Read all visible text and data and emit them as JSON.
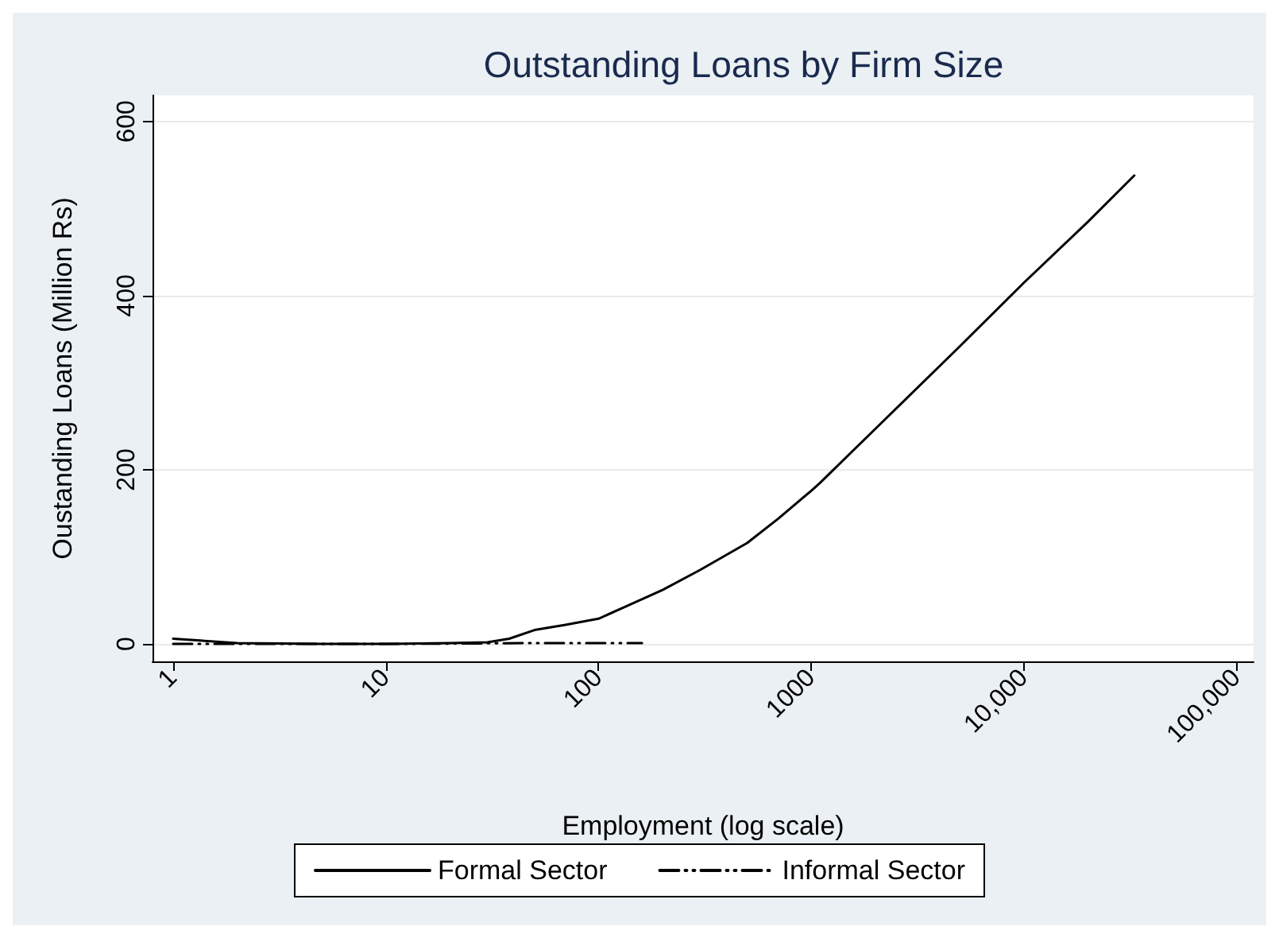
{
  "chart_data": {
    "type": "line",
    "title": "Outstanding Loans by Firm Size",
    "xlabel": "Employment (log scale)",
    "ylabel": "Oustanding Loans (Million Rs)",
    "log": "x",
    "xlim": [
      0.8,
      120000
    ],
    "xticks": [
      1,
      10,
      100,
      1000,
      {
        "value": 10000,
        "label": "10,000"
      },
      {
        "value": 100000,
        "label": "100,000"
      }
    ],
    "ylim": [
      -20,
      630
    ],
    "yticks": [
      0,
      200,
      400,
      600
    ],
    "grid": "y",
    "legend": "bottom",
    "marker": "none",
    "series": [
      {
        "name": "Formal Sector",
        "color": "#000000",
        "line_style": "solid",
        "x": [
          1,
          2,
          5,
          10,
          20,
          30,
          38,
          50,
          70,
          100,
          200,
          300,
          500,
          700,
          1000,
          1100,
          2000,
          5000,
          10000,
          20000,
          33000
        ],
        "values": [
          6,
          1,
          0,
          0,
          1,
          2,
          6,
          16,
          22,
          29,
          62,
          85,
          116,
          144,
          176,
          185,
          247,
          342,
          415,
          485,
          538
        ]
      },
      {
        "name": "Informal Sector",
        "color": "#000000",
        "line_style": "dashed",
        "x": [
          1,
          10,
          50,
          160
        ],
        "values": [
          0,
          0,
          1,
          1
        ]
      }
    ]
  }
}
